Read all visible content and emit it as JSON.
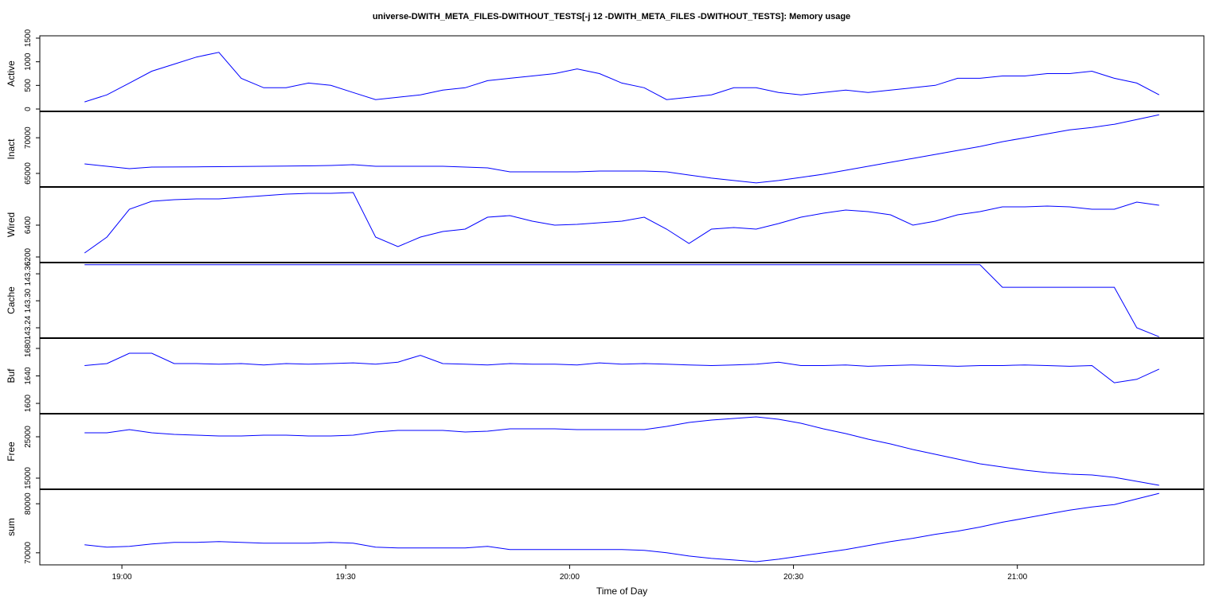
{
  "chart_data": {
    "type": "line",
    "title": "universe-DWITH_META_FILES-DWITHOUT_TESTS[-j 12 -DWITH_META_FILES -DWITHOUT_TESTS]: Memory usage",
    "x_label": "Time of Day",
    "xlim": [
      "18:49",
      "21:25"
    ],
    "xticks": [
      "19:00",
      "19:30",
      "20:00",
      "20:30",
      "21:00"
    ],
    "x": [
      "18:55",
      "18:58",
      "19:01",
      "19:04",
      "19:07",
      "19:10",
      "19:13",
      "19:16",
      "19:19",
      "19:22",
      "19:25",
      "19:28",
      "19:31",
      "19:34",
      "19:37",
      "19:40",
      "19:43",
      "19:46",
      "19:49",
      "19:52",
      "19:55",
      "19:58",
      "20:01",
      "20:04",
      "20:07",
      "20:10",
      "20:13",
      "20:16",
      "20:19",
      "20:22",
      "20:25",
      "20:28",
      "20:31",
      "20:34",
      "20:37",
      "20:40",
      "20:43",
      "20:46",
      "20:49",
      "20:52",
      "20:55",
      "20:58",
      "21:01",
      "21:04",
      "21:07",
      "21:10",
      "21:13",
      "21:16",
      "21:19"
    ],
    "panels": [
      {
        "name": "Active",
        "color": "#0000ff",
        "ylim": [
          -50,
          1550
        ],
        "yticks": [
          0,
          500,
          1000,
          1500
        ],
        "values": [
          150,
          300,
          550,
          800,
          950,
          1100,
          1200,
          650,
          450,
          450,
          550,
          500,
          350,
          200,
          250,
          300,
          400,
          450,
          600,
          650,
          700,
          750,
          850,
          750,
          550,
          450,
          200,
          250,
          300,
          450,
          450,
          350,
          300,
          350,
          400,
          350,
          400,
          450,
          500,
          650,
          650,
          700,
          700,
          750,
          750,
          800,
          650,
          550,
          300
        ]
      },
      {
        "name": "Inact",
        "color": "#0000ff",
        "ylim": [
          63100,
          73700
        ],
        "yticks": [
          65000,
          70000
        ],
        "values": [
          66333,
          66000,
          65667,
          65889,
          65900,
          65920,
          65950,
          65980,
          66000,
          66030,
          66060,
          66111,
          66222,
          66000,
          66000,
          66000,
          66000,
          65889,
          65778,
          65222,
          65222,
          65222,
          65222,
          65333,
          65333,
          65333,
          65222,
          64778,
          64333,
          64000,
          63667,
          64000,
          64444,
          64889,
          65444,
          66000,
          66556,
          67111,
          67667,
          68222,
          68778,
          69444,
          70000,
          70556,
          71111,
          71444,
          71889,
          72556,
          73222
        ]
      },
      {
        "name": "Wired",
        "color": "#0000ff",
        "ylim": [
          6165,
          6640
        ],
        "yticks": [
          6200,
          6400
        ],
        "values": [
          6225,
          6325,
          6500,
          6550,
          6560,
          6565,
          6565,
          6575,
          6585,
          6595,
          6600,
          6600,
          6605,
          6325,
          6265,
          6325,
          6360,
          6375,
          6450,
          6460,
          6425,
          6400,
          6405,
          6415,
          6425,
          6450,
          6375,
          6285,
          6375,
          6385,
          6375,
          6410,
          6450,
          6475,
          6495,
          6485,
          6465,
          6400,
          6425,
          6465,
          6485,
          6515,
          6515,
          6520,
          6515,
          6500,
          6500,
          6545,
          6525
        ]
      },
      {
        "name": "Cache",
        "color": "#0000ff",
        "ylim": [
          143.217,
          143.385
        ],
        "yticks": [
          143.24,
          {
            "value": 143.3,
            "label": "143.30"
          },
          143.36
        ],
        "values": [
          143.38,
          143.38,
          143.38,
          143.38,
          143.38,
          143.38,
          143.38,
          143.38,
          143.38,
          143.38,
          143.38,
          143.38,
          143.38,
          143.38,
          143.38,
          143.38,
          143.38,
          143.38,
          143.38,
          143.38,
          143.38,
          143.38,
          143.38,
          143.38,
          143.38,
          143.38,
          143.38,
          143.38,
          143.38,
          143.38,
          143.38,
          143.38,
          143.38,
          143.38,
          143.38,
          143.38,
          143.38,
          143.38,
          143.38,
          143.38,
          143.38,
          143.33,
          143.33,
          143.33,
          143.33,
          143.33,
          143.33,
          143.24,
          143.22
        ]
      },
      {
        "name": "Buf",
        "color": "#0000ff",
        "ylim": [
          1585,
          1695
        ],
        "yticks": [
          1600,
          1640,
          1680
        ],
        "values": [
          1655,
          1658,
          1673,
          1673,
          1658,
          1658,
          1657,
          1658,
          1656,
          1658,
          1657,
          1658,
          1659,
          1657,
          1660,
          1670,
          1658,
          1657,
          1656,
          1658,
          1657,
          1657,
          1656,
          1659,
          1657,
          1658,
          1657,
          1656,
          1655,
          1656,
          1657,
          1660,
          1655,
          1655,
          1656,
          1654,
          1655,
          1656,
          1655,
          1654,
          1655,
          1655,
          1656,
          1655,
          1654,
          1655,
          1630,
          1635,
          1650
        ]
      },
      {
        "name": "Free",
        "color": "#0000ff",
        "ylim": [
          12308,
          30577
        ],
        "yticks": [
          15000,
          25000
        ],
        "values": [
          25962,
          25962,
          26731,
          25962,
          25577,
          25385,
          25192,
          25192,
          25385,
          25385,
          25192,
          25192,
          25385,
          26154,
          26538,
          26538,
          26538,
          26154,
          26346,
          26923,
          26923,
          26923,
          26731,
          26731,
          26731,
          26731,
          27500,
          28462,
          29038,
          29423,
          29808,
          29231,
          28269,
          26923,
          25769,
          24423,
          23269,
          21923,
          20769,
          19615,
          18462,
          17692,
          16923,
          16346,
          15962,
          15769,
          15192,
          14231,
          13269
        ]
      },
      {
        "name": "sum",
        "color": "#0000ff",
        "ylim": [
          67541,
          82951
        ],
        "yticks": [
          70000,
          80000
        ],
        "values": [
          71639,
          71148,
          71311,
          71803,
          72131,
          72131,
          72295,
          72131,
          71967,
          71967,
          71967,
          72131,
          71967,
          71148,
          70984,
          70984,
          70984,
          70984,
          71311,
          70656,
          70656,
          70656,
          70656,
          70656,
          70656,
          70492,
          70000,
          69344,
          68852,
          68525,
          68197,
          68689,
          69344,
          70000,
          70656,
          71475,
          72295,
          72951,
          73770,
          74426,
          75246,
          76230,
          77049,
          77869,
          78689,
          79344,
          79836,
          80984,
          82131
        ]
      }
    ]
  }
}
